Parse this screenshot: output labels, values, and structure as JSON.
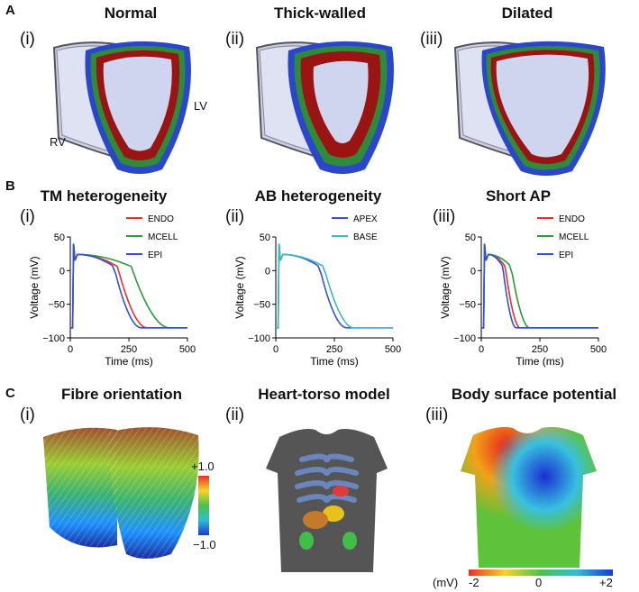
{
  "panel_a": {
    "letter": "A",
    "items": [
      {
        "roman": "(i)",
        "title": "Normal"
      },
      {
        "roman": "(ii)",
        "title": "Thick-walled"
      },
      {
        "roman": "(iii)",
        "title": "Dilated"
      }
    ],
    "label_rv": "RV",
    "label_lv": "LV"
  },
  "panel_b": {
    "letter": "B",
    "xlabel": "Time (ms)",
    "ylabel": "Voltage (mV)",
    "xticks": [
      "0",
      "250",
      "500"
    ],
    "yticks": [
      "50",
      "0",
      "−50",
      "−100"
    ],
    "xlim": [
      0,
      500
    ],
    "ylim": [
      -100,
      50
    ],
    "charts": [
      {
        "roman": "(i)",
        "title": "TM heterogeneity",
        "series": [
          {
            "name": "ENDO",
            "color": "#e8302a",
            "apd": 325
          },
          {
            "name": "MCELL",
            "color": "#2a9a3a",
            "apd": 420
          },
          {
            "name": "EPI",
            "color": "#2f4fe0",
            "apd": 300
          }
        ]
      },
      {
        "roman": "(ii)",
        "title": "AB heterogeneity",
        "series": [
          {
            "name": "APEX",
            "color": "#3a4fd8",
            "apd": 300
          },
          {
            "name": "BASE",
            "color": "#36bcbc",
            "apd": 330
          }
        ]
      },
      {
        "roman": "(iii)",
        "title": "Short AP",
        "series": [
          {
            "name": "ENDO",
            "color": "#e8302a",
            "apd": 165
          },
          {
            "name": "MCELL",
            "color": "#2a9a3a",
            "apd": 205
          },
          {
            "name": "EPI",
            "color": "#2f4fe0",
            "apd": 148
          }
        ]
      }
    ]
  },
  "panel_c": {
    "letter": "C",
    "items": [
      {
        "roman": "(i)",
        "title": "Fibre orientation"
      },
      {
        "roman": "(ii)",
        "title": "Heart-torso model"
      },
      {
        "roman": "(iii)",
        "title": "Body surface potential"
      }
    ],
    "fibre_colorbar": {
      "top": "+1.0",
      "bottom": "−1.0"
    },
    "bsp_colorbar": {
      "unit": "(mV)",
      "min": "-2",
      "mid": "0",
      "max": "+2"
    }
  }
}
